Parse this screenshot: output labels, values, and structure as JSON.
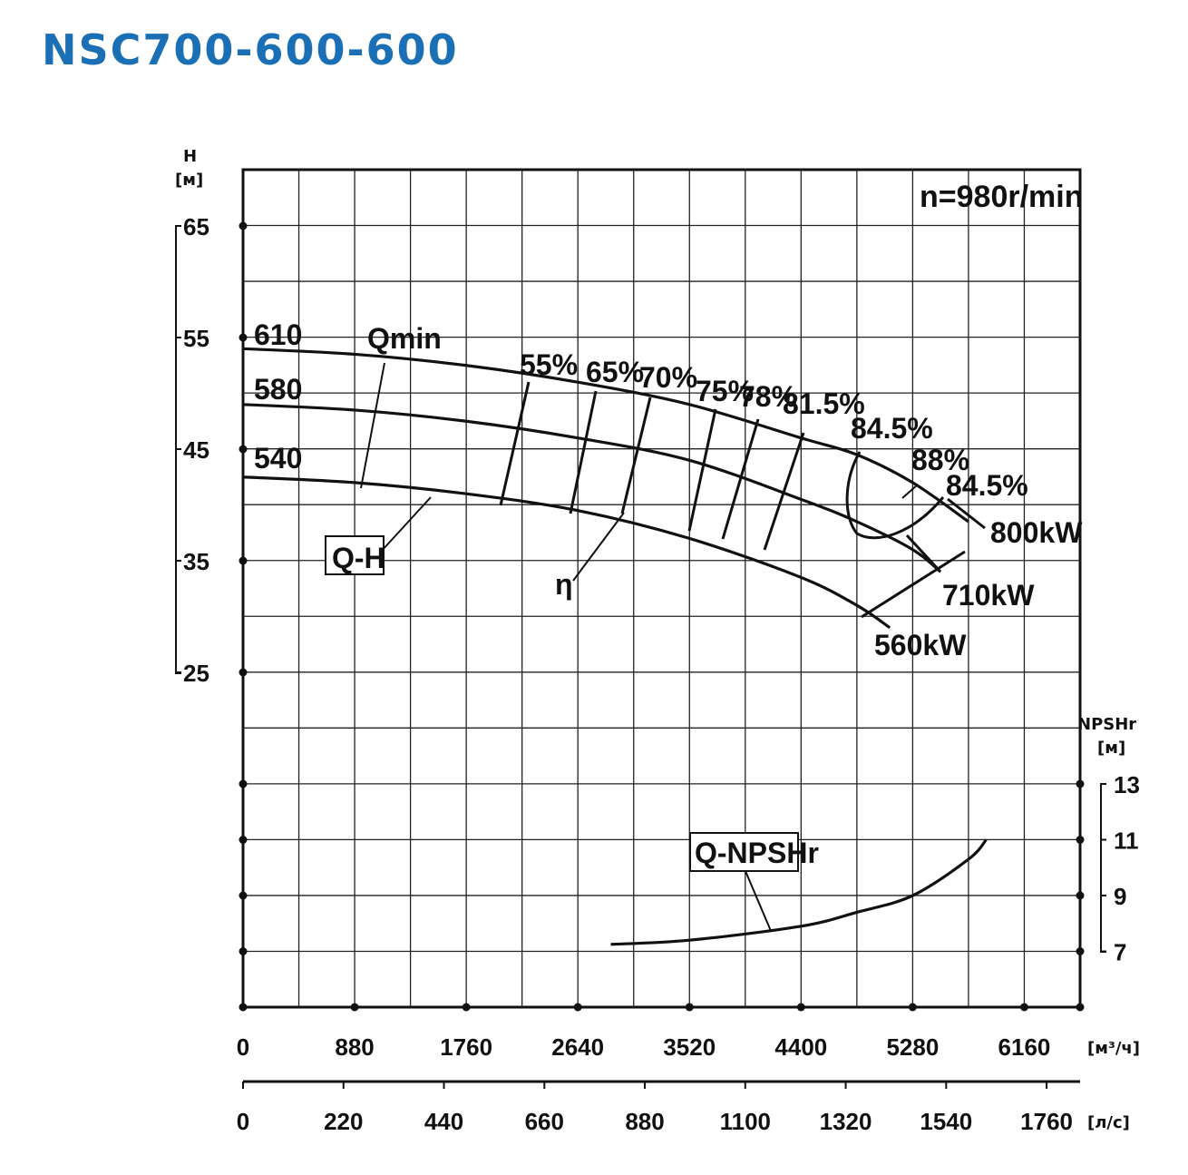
{
  "title": "NSC700-600-600",
  "chart_data": {
    "type": "line",
    "speed_label": "n=980r/min",
    "head_axis": {
      "label": "H",
      "unit": "[м]",
      "ticks": [
        "65",
        "55",
        "45",
        "35",
        "25"
      ],
      "tick_values": [
        65,
        55,
        45,
        35,
        25
      ]
    },
    "npsh_axis": {
      "label": "NPSHr",
      "unit": "[м]",
      "ticks": [
        "13",
        "11",
        "9",
        "7"
      ],
      "tick_values": [
        13,
        11,
        9,
        7
      ]
    },
    "x_axis_m3h": {
      "unit": "[м³/ч]",
      "ticks": [
        "0",
        "880",
        "1760",
        "2640",
        "3520",
        "4400",
        "5280",
        "6160"
      ],
      "tick_values": [
        0,
        880,
        1760,
        2640,
        3520,
        4400,
        5280,
        6160
      ],
      "range": [
        0,
        6600
      ]
    },
    "x_axis_ls": {
      "unit": "[л/с]",
      "ticks": [
        "0",
        "220",
        "440",
        "660",
        "880",
        "1100",
        "1320",
        "1540",
        "1760"
      ],
      "tick_values": [
        0,
        220,
        440,
        660,
        880,
        1100,
        1320,
        1540,
        1760
      ]
    },
    "qh_series": [
      {
        "name": "610",
        "x": [
          0,
          880,
          1760,
          2640,
          3520,
          4400,
          4840,
          5280,
          5720
        ],
        "y": [
          54,
          53.5,
          52.5,
          51,
          49,
          46,
          44.5,
          42,
          38.5
        ]
      },
      {
        "name": "580",
        "x": [
          0,
          880,
          1760,
          2640,
          3520,
          4400,
          4840,
          5280,
          5500
        ],
        "y": [
          49,
          48.5,
          47.5,
          46,
          44,
          40.5,
          38.5,
          36,
          34
        ]
      },
      {
        "name": "540",
        "x": [
          0,
          880,
          1760,
          2640,
          3520,
          4400,
          4840,
          5100
        ],
        "y": [
          42.5,
          42,
          41,
          39.5,
          37,
          33.5,
          31,
          29
        ]
      }
    ],
    "efficiency_labels": [
      "55%",
      "65%",
      "70%",
      "75%",
      "78%",
      "81.5%",
      "84.5%",
      "88%",
      "84.5%"
    ],
    "power_labels": [
      "800kW",
      "710kW",
      "560kW"
    ],
    "curve_labels": {
      "qmin": "Qmin",
      "qh": "Q-H",
      "eta": "η",
      "npsh": "Q-NPSHr"
    },
    "npsh_series": {
      "name": "Q-NPSHr",
      "x": [
        2900,
        3520,
        4400,
        4840,
        5280,
        5720,
        5860
      ],
      "y": [
        7.25,
        7.4,
        7.9,
        8.4,
        9.0,
        10.3,
        11.0
      ]
    }
  }
}
